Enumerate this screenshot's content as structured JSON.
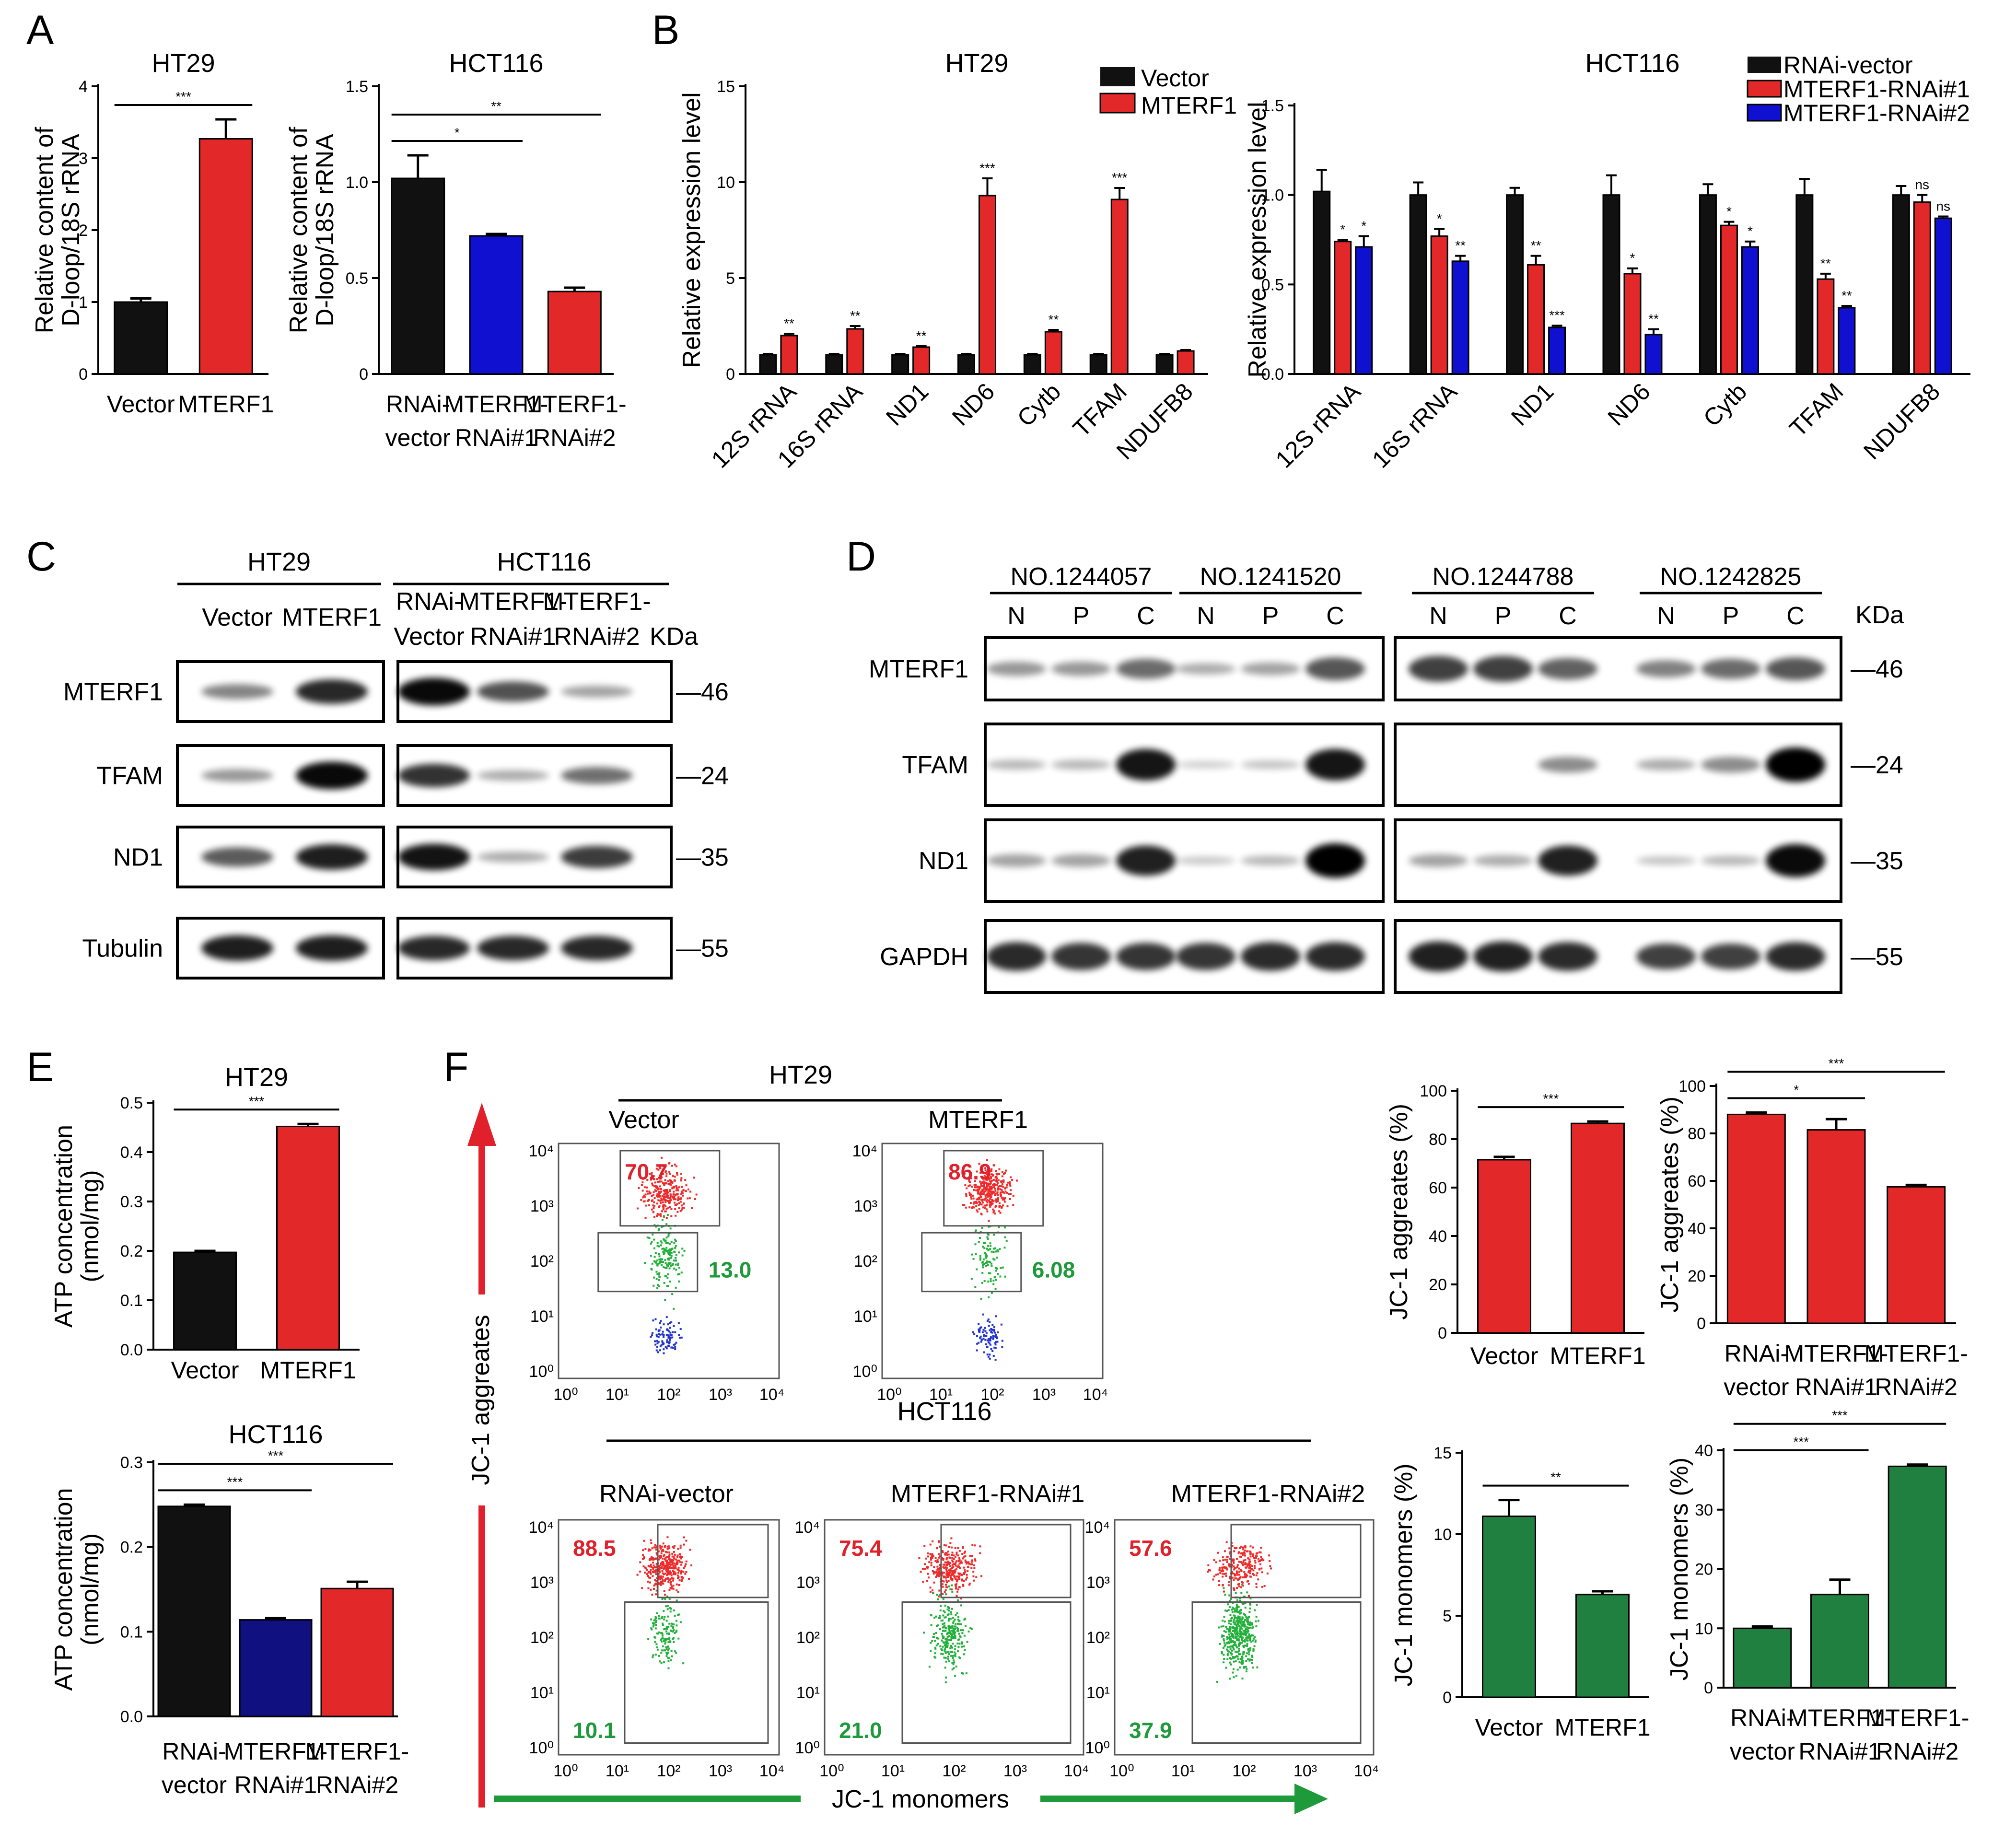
{
  "colors": {
    "black": "#111111",
    "red": "#e3282a",
    "blue": "#1010d0",
    "navy": "#101080",
    "green": "#1f8040",
    "facs_red": "#ee2a2a",
    "facs_green": "#22b03a",
    "facs_blue": "#2233cc"
  },
  "panels": {
    "A": "A",
    "B": "B",
    "C": "C",
    "D": "D",
    "E": "E",
    "F": "F"
  },
  "chart_data": [
    {
      "id": "A1",
      "type": "bar",
      "title": "HT29",
      "ylabel": [
        "Relative content of",
        "D-loop/18S rRNA"
      ],
      "ylim": [
        0,
        4
      ],
      "yticks": [
        "0",
        "1",
        "2",
        "3",
        "4"
      ],
      "categories": [
        [
          "Vector"
        ],
        [
          "MTERF1"
        ]
      ],
      "values": [
        1.0,
        3.27
      ],
      "errors": [
        0.05,
        0.27
      ],
      "colors": [
        "#111111",
        "#e3282a"
      ],
      "significance": [
        {
          "from": 0,
          "to": 1,
          "label": "***"
        }
      ]
    },
    {
      "id": "A2",
      "type": "bar",
      "title": "HCT116",
      "ylabel": [
        "Relative content of",
        "D-loop/18S rRNA"
      ],
      "ylim": [
        0,
        1.5
      ],
      "yticks": [
        "0",
        "0.5",
        "1.0",
        "1.5"
      ],
      "categories": [
        [
          "RNAi-",
          "vector"
        ],
        [
          "MTERF1-",
          "RNAi#1"
        ],
        [
          "MTERF1-",
          "RNAi#2"
        ]
      ],
      "values": [
        1.02,
        0.72,
        0.43
      ],
      "errors": [
        0.12,
        0.01,
        0.02
      ],
      "colors": [
        "#111111",
        "#1010d0",
        "#e3282a"
      ],
      "significance": [
        {
          "from": 0,
          "to": 1,
          "label": "*"
        },
        {
          "from": 0,
          "to": 2,
          "label": "**"
        }
      ]
    },
    {
      "id": "B1",
      "type": "bar",
      "title": "HT29",
      "ylabel": [
        "Relative expression level"
      ],
      "ylim": [
        0,
        15
      ],
      "yticks": [
        "0",
        "5",
        "10",
        "15"
      ],
      "categories": [
        "12S rRNA",
        "16S rRNA",
        "ND1",
        "ND6",
        "Cytb",
        "TFAM",
        "NDUFB8"
      ],
      "series": [
        {
          "name": "Vector",
          "color": "#111111",
          "values": [
            1.0,
            1.0,
            1.0,
            1.0,
            1.0,
            1.0,
            1.0
          ],
          "errors": [
            0.05,
            0.05,
            0.05,
            0.05,
            0.05,
            0.05,
            0.05
          ]
        },
        {
          "name": "MTERF1",
          "color": "#e3282a",
          "values": [
            2.0,
            2.35,
            1.4,
            9.3,
            2.2,
            9.1,
            1.2
          ],
          "errors": [
            0.1,
            0.15,
            0.05,
            0.9,
            0.1,
            0.6,
            0.05
          ]
        }
      ],
      "sig": [
        [
          "**"
        ],
        [
          "**"
        ],
        [
          "**"
        ],
        [
          "***"
        ],
        [
          "**"
        ],
        [
          "***"
        ],
        [
          ""
        ]
      ]
    },
    {
      "id": "B2",
      "type": "bar",
      "title": "HCT116",
      "ylabel": [
        "Relative expression level"
      ],
      "ylim": [
        0,
        1.5
      ],
      "yticks": [
        "0.0",
        "0.5",
        "1.0",
        "1.5"
      ],
      "categories": [
        "12S rRNA",
        "16S rRNA",
        "ND1",
        "ND6",
        "Cytb",
        "TFAM",
        "NDUFB8"
      ],
      "series": [
        {
          "name": "RNAi-vector",
          "color": "#111111",
          "values": [
            1.02,
            1.0,
            1.0,
            1.0,
            1.0,
            1.0,
            1.0
          ],
          "errors": [
            0.12,
            0.07,
            0.04,
            0.11,
            0.06,
            0.09,
            0.05
          ]
        },
        {
          "name": "MTERF1-RNAi#1",
          "color": "#e3282a",
          "values": [
            0.74,
            0.77,
            0.61,
            0.56,
            0.83,
            0.53,
            0.96
          ],
          "errors": [
            0.01,
            0.04,
            0.05,
            0.03,
            0.02,
            0.03,
            0.04
          ]
        },
        {
          "name": "MTERF1-RNAi#2",
          "color": "#1010d0",
          "values": [
            0.71,
            0.63,
            0.26,
            0.22,
            0.71,
            0.37,
            0.87
          ],
          "errors": [
            0.06,
            0.03,
            0.01,
            0.03,
            0.03,
            0.01,
            0.01
          ]
        }
      ],
      "sig": [
        [
          "*",
          "*"
        ],
        [
          "*",
          "**"
        ],
        [
          "**",
          "***"
        ],
        [
          "*",
          "**"
        ],
        [
          "*",
          "*"
        ],
        [
          "**",
          "**"
        ],
        [
          "ns",
          "ns"
        ]
      ]
    },
    {
      "id": "E1",
      "type": "bar",
      "title": "HT29",
      "ylabel": [
        "ATP concentration",
        "(nmol/mg)"
      ],
      "ylim": [
        0,
        0.5
      ],
      "yticks": [
        "0.0",
        "0.1",
        "0.2",
        "0.3",
        "0.4",
        "0.5"
      ],
      "categories": [
        [
          "Vector"
        ],
        [
          "MTERF1"
        ]
      ],
      "values": [
        0.197,
        0.452
      ],
      "errors": [
        0.003,
        0.005
      ],
      "colors": [
        "#111111",
        "#e3282a"
      ],
      "significance": [
        {
          "from": 0,
          "to": 1,
          "label": "***"
        }
      ]
    },
    {
      "id": "E2",
      "type": "bar",
      "title": "HCT116",
      "ylabel": [
        "ATP concentration",
        "(nmol/mg)"
      ],
      "ylim": [
        0,
        0.3
      ],
      "yticks": [
        "0.0",
        "0.1",
        "0.2",
        "0.3"
      ],
      "categories": [
        [
          "RNAi-",
          "vector"
        ],
        [
          "MTERF1-",
          "RNAi#1"
        ],
        [
          "MTERF1-",
          "RNAi#2"
        ]
      ],
      "values": [
        0.248,
        0.114,
        0.151
      ],
      "errors": [
        0.002,
        0.002,
        0.008
      ],
      "colors": [
        "#111111",
        "#101080",
        "#e3282a"
      ],
      "significance": [
        {
          "from": 0,
          "to": 1,
          "label": "***"
        },
        {
          "from": 0,
          "to": 2,
          "label": "***"
        }
      ]
    },
    {
      "id": "F1",
      "type": "bar",
      "title": "",
      "ylabel": [
        "JC-1 aggreates (%)"
      ],
      "ylim": [
        0,
        100
      ],
      "yticks": [
        "0",
        "20",
        "40",
        "60",
        "80",
        "100"
      ],
      "categories": [
        [
          "Vector"
        ],
        [
          "MTERF1"
        ]
      ],
      "values": [
        71.5,
        86.5
      ],
      "errors": [
        1.2,
        0.8
      ],
      "colors": [
        "#e3282a",
        "#e3282a"
      ],
      "significance": [
        {
          "from": 0,
          "to": 1,
          "label": "***"
        }
      ]
    },
    {
      "id": "F2",
      "type": "bar",
      "title": "",
      "ylabel": [
        "JC-1 aggreates (%)"
      ],
      "ylim": [
        0,
        100
      ],
      "yticks": [
        "0",
        "20",
        "40",
        "60",
        "80",
        "100"
      ],
      "categories": [
        [
          "RNAi-",
          "vector"
        ],
        [
          "MTERF1-",
          "RNAi#1"
        ],
        [
          "MTERF1-",
          "RNAi#2"
        ]
      ],
      "values": [
        88.0,
        81.5,
        57.5
      ],
      "errors": [
        0.8,
        4.5,
        0.8
      ],
      "colors": [
        "#e3282a",
        "#e3282a",
        "#e3282a"
      ],
      "significance": [
        {
          "from": 0,
          "to": 1,
          "label": "*"
        },
        {
          "from": 0,
          "to": 2,
          "label": "***"
        }
      ]
    },
    {
      "id": "F3",
      "type": "bar",
      "title": "",
      "ylabel": [
        "JC-1 monomers (%)"
      ],
      "ylim": [
        0,
        15
      ],
      "yticks": [
        "0",
        "5",
        "10",
        "15"
      ],
      "categories": [
        [
          "Vector"
        ],
        [
          "MTERF1"
        ]
      ],
      "values": [
        11.1,
        6.3
      ],
      "errors": [
        1.0,
        0.2
      ],
      "colors": [
        "#1f8040",
        "#1f8040"
      ],
      "significance": [
        {
          "from": 0,
          "to": 1,
          "label": "**"
        }
      ]
    },
    {
      "id": "F4",
      "type": "bar",
      "title": "",
      "ylabel": [
        "JC-1 monomers (%)"
      ],
      "ylim": [
        0,
        40
      ],
      "yticks": [
        "0",
        "10",
        "20",
        "30",
        "40"
      ],
      "categories": [
        [
          "RNAi-",
          "vector"
        ],
        [
          "MTERF1-",
          "RNAi#1"
        ],
        [
          "MTERF1-",
          "RNAi#2"
        ]
      ],
      "values": [
        10.0,
        15.7,
        37.3
      ],
      "errors": [
        0.3,
        2.5,
        0.3
      ],
      "colors": [
        "#1f8040",
        "#1f8040",
        "#1f8040"
      ],
      "significance": [
        {
          "from": 0,
          "to": 1,
          "label": "***"
        },
        {
          "from": 0,
          "to": 2,
          "label": "***"
        }
      ]
    }
  ],
  "legend_B1": [
    "Vector",
    "MTERF1"
  ],
  "legend_B2": [
    "RNAi-vector",
    "MTERF1-RNAi#1",
    "MTERF1-RNAi#2"
  ],
  "westernC": {
    "group1": "HT29",
    "group2": "HCT116",
    "lanes": [
      [
        "Vector"
      ],
      [
        "MTERF1"
      ],
      [
        "RNAi-",
        "Vector"
      ],
      [
        "MTERF1-",
        "RNAi#1"
      ],
      [
        "MTERF1-",
        "RNAi#2"
      ]
    ],
    "kda": "KDa",
    "proteins": [
      "MTERF1",
      "TFAM",
      "ND1",
      "Tubulin"
    ],
    "sizes": [
      "46",
      "24",
      "35",
      "55"
    ],
    "intensities": [
      [
        0.35,
        0.8,
        0.95,
        0.6,
        0.2
      ],
      [
        0.25,
        0.95,
        0.75,
        0.15,
        0.45
      ],
      [
        0.55,
        0.85,
        0.9,
        0.15,
        0.7
      ],
      [
        0.85,
        0.85,
        0.8,
        0.8,
        0.8
      ]
    ]
  },
  "westernD": {
    "samples": [
      "NO.1244057",
      "NO.1241520",
      "NO.1244788",
      "NO.1242825"
    ],
    "lanes": [
      "N",
      "P",
      "C"
    ],
    "kda": "KDa",
    "proteins": [
      "MTERF1",
      "TFAM",
      "ND1",
      "GAPDH"
    ],
    "sizes": [
      "46",
      "24",
      "35",
      "55"
    ],
    "intensities": [
      [
        0.3,
        0.3,
        0.5,
        0.2,
        0.25,
        0.6,
        0.7,
        0.7,
        0.55,
        0.4,
        0.5,
        0.6
      ],
      [
        0.15,
        0.15,
        0.9,
        0.05,
        0.1,
        0.9,
        0.0,
        0.0,
        0.35,
        0.2,
        0.35,
        1.0
      ],
      [
        0.25,
        0.25,
        0.85,
        0.08,
        0.15,
        1.0,
        0.25,
        0.2,
        0.85,
        0.1,
        0.15,
        0.95
      ],
      [
        0.8,
        0.75,
        0.75,
        0.75,
        0.8,
        0.8,
        0.85,
        0.85,
        0.8,
        0.7,
        0.7,
        0.8
      ]
    ]
  },
  "facs": {
    "ht29_title": "HT29",
    "hct116_title": "HCT116",
    "y_axis_label": "JC-1 aggreates",
    "x_axis_label": "JC-1 monomers",
    "tick_labels": [
      "10⁰",
      "10¹",
      "10²",
      "10³",
      "10⁴"
    ],
    "plots": [
      {
        "name": "Vector",
        "upper": "70.7",
        "lower": "13.0"
      },
      {
        "name": "MTERF1",
        "upper": "86.9",
        "lower": "6.08"
      },
      {
        "name": "RNAi-vector",
        "upper": "88.5",
        "lower": "10.1"
      },
      {
        "name": "MTERF1-RNAi#1",
        "upper": "75.4",
        "lower": "21.0"
      },
      {
        "name": "MTERF1-RNAi#2",
        "upper": "57.6",
        "lower": "37.9"
      }
    ]
  }
}
